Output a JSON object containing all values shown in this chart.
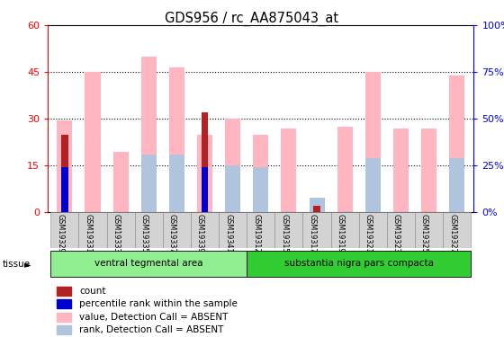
{
  "title": "GDS956 / rc_AA875043_at",
  "samples": [
    "GSM19329",
    "GSM19331",
    "GSM19333",
    "GSM19335",
    "GSM19337",
    "GSM19339",
    "GSM19341",
    "GSM19312",
    "GSM19315",
    "GSM19317",
    "GSM19319",
    "GSM19321",
    "GSM19323",
    "GSM19325",
    "GSM19327"
  ],
  "groups": [
    {
      "name": "ventral tegmental area",
      "indices": [
        0,
        1,
        2,
        3,
        4,
        5,
        6
      ],
      "color": "#90ee90"
    },
    {
      "name": "substantia nigra pars compacta",
      "indices": [
        7,
        8,
        9,
        10,
        11,
        12,
        13,
        14
      ],
      "color": "#32cd32"
    }
  ],
  "value_absent": [
    29.5,
    45.0,
    19.5,
    50.0,
    46.5,
    25.0,
    30.0,
    25.0,
    27.0,
    3.0,
    27.5,
    45.0,
    27.0,
    27.0,
    44.0
  ],
  "rank_absent": [
    0,
    0,
    0,
    31,
    31,
    0,
    25,
    24,
    0,
    8,
    0,
    29,
    0,
    0,
    29
  ],
  "count": [
    25,
    0,
    0,
    0,
    0,
    32,
    0,
    0,
    0,
    2,
    0,
    0,
    0,
    0,
    0
  ],
  "percentile": [
    24,
    0,
    0,
    0,
    0,
    24,
    0,
    0,
    0,
    0,
    0,
    0,
    0,
    0,
    0
  ],
  "left_ylim": [
    0,
    60
  ],
  "right_ylim": [
    0,
    100
  ],
  "left_yticks": [
    0,
    15,
    30,
    45,
    60
  ],
  "right_yticks": [
    0,
    25,
    50,
    75,
    100
  ],
  "right_yticklabels": [
    "0%",
    "25%",
    "50%",
    "75%",
    "100%"
  ],
  "color_count": "#b22222",
  "color_percentile": "#0000cc",
  "color_value_absent": "#ffb6c1",
  "color_rank_absent": "#b0c4de",
  "legend_items": [
    {
      "label": "count",
      "color": "#b22222"
    },
    {
      "label": "percentile rank within the sample",
      "color": "#0000cc"
    },
    {
      "label": "value, Detection Call = ABSENT",
      "color": "#ffb6c1"
    },
    {
      "label": "rank, Detection Call = ABSENT",
      "color": "#b0c4de"
    }
  ],
  "bar_width": 0.55,
  "narrow_bar_ratio": 0.45
}
